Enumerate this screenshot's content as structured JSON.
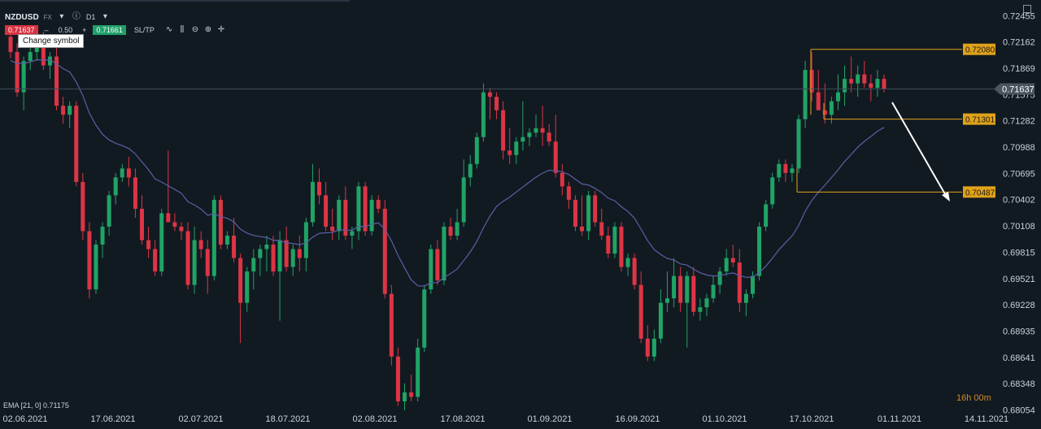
{
  "header": {
    "symbol": "NZDUSD",
    "market": "FX",
    "timeframe": "D1",
    "sell_price": "0.71637",
    "spread": "0.50",
    "buy_price": "0.71661",
    "sltp_label": "SL/TP",
    "tooltip": "Change symbol",
    "minus": "–",
    "plus": "+"
  },
  "indicator": {
    "label": "EMA [21, 0] 0.71175"
  },
  "timer": "16h 00m",
  "colors": {
    "bg": "#121a21",
    "up": "#21a366",
    "down": "#dc3545",
    "ema": "#5a5fa8",
    "level": "#e0a21a",
    "arrow": "#ffffff",
    "price_line": "#3a4a55"
  },
  "chart_data": {
    "type": "candlestick",
    "symbol": "NZDUSD",
    "timeframe": "D1",
    "ylim": [
      0.6805,
      0.7254
    ],
    "y_ticks": [
      "0.72455",
      "0.72162",
      "0.71869",
      "0.71575",
      "0.71282",
      "0.70988",
      "0.70695",
      "0.70402",
      "0.70108",
      "0.69815",
      "0.69521",
      "0.69228",
      "0.68935",
      "0.68641",
      "0.68348",
      "0.68054"
    ],
    "x_ticks": [
      "02.06.2021",
      "17.06.2021",
      "02.07.2021",
      "18.07.2021",
      "02.08.2021",
      "17.08.2021",
      "01.09.2021",
      "16.09.2021",
      "01.10.2021",
      "17.10.2021",
      "01.11.2021",
      "14.11.2021"
    ],
    "current_price": "0.71637",
    "levels": [
      {
        "label": "0.72080",
        "value": 0.7208
      },
      {
        "label": "0.71301",
        "value": 0.71301
      },
      {
        "label": "0.70487",
        "value": 0.70487
      }
    ],
    "candles": [
      [
        0.7222,
        0.7232,
        0.7198,
        0.7205
      ],
      [
        0.7205,
        0.7215,
        0.7155,
        0.716
      ],
      [
        0.716,
        0.72,
        0.714,
        0.7195
      ],
      [
        0.7195,
        0.721,
        0.7185,
        0.7205
      ],
      [
        0.7205,
        0.7232,
        0.7195,
        0.7225
      ],
      [
        0.7225,
        0.7228,
        0.7185,
        0.719
      ],
      [
        0.719,
        0.7205,
        0.7175,
        0.72
      ],
      [
        0.72,
        0.721,
        0.714,
        0.7145
      ],
      [
        0.7145,
        0.7155,
        0.7125,
        0.7135
      ],
      [
        0.7135,
        0.715,
        0.712,
        0.7145
      ],
      [
        0.7145,
        0.715,
        0.7055,
        0.706
      ],
      [
        0.706,
        0.707,
        0.6995,
        0.7005
      ],
      [
        0.7005,
        0.7015,
        0.693,
        0.694
      ],
      [
        0.694,
        0.6995,
        0.6935,
        0.699
      ],
      [
        0.699,
        0.7015,
        0.6975,
        0.701
      ],
      [
        0.701,
        0.705,
        0.7,
        0.7045
      ],
      [
        0.7045,
        0.707,
        0.7035,
        0.7065
      ],
      [
        0.7065,
        0.708,
        0.706,
        0.7075
      ],
      [
        0.7075,
        0.7088,
        0.7055,
        0.7065
      ],
      [
        0.7065,
        0.7075,
        0.702,
        0.703
      ],
      [
        0.703,
        0.7045,
        0.699,
        0.6995
      ],
      [
        0.6995,
        0.701,
        0.6975,
        0.6985
      ],
      [
        0.6985,
        0.6995,
        0.6955,
        0.696
      ],
      [
        0.696,
        0.703,
        0.6955,
        0.7025
      ],
      [
        0.7025,
        0.7095,
        0.7015,
        0.7015
      ],
      [
        0.7015,
        0.7025,
        0.7005,
        0.701
      ],
      [
        0.701,
        0.7015,
        0.6995,
        0.7005
      ],
      [
        0.7005,
        0.7015,
        0.694,
        0.6945
      ],
      [
        0.6945,
        0.701,
        0.6935,
        0.6995
      ],
      [
        0.6995,
        0.7005,
        0.6975,
        0.6985
      ],
      [
        0.6985,
        0.6995,
        0.6935,
        0.6955
      ],
      [
        0.6955,
        0.7045,
        0.695,
        0.704
      ],
      [
        0.704,
        0.7045,
        0.6985,
        0.699
      ],
      [
        0.699,
        0.7005,
        0.6985,
        0.7
      ],
      [
        0.7,
        0.702,
        0.697,
        0.6975
      ],
      [
        0.6975,
        0.698,
        0.688,
        0.6925
      ],
      [
        0.6925,
        0.6965,
        0.6915,
        0.696
      ],
      [
        0.696,
        0.6985,
        0.694,
        0.6975
      ],
      [
        0.6975,
        0.699,
        0.6955,
        0.6985
      ],
      [
        0.6985,
        0.7,
        0.696,
        0.699
      ],
      [
        0.699,
        0.7,
        0.6955,
        0.696
      ],
      [
        0.696,
        0.7005,
        0.6905,
        0.6995
      ],
      [
        0.6995,
        0.701,
        0.696,
        0.6965
      ],
      [
        0.6965,
        0.699,
        0.6955,
        0.6985
      ],
      [
        0.6985,
        0.7,
        0.696,
        0.6975
      ],
      [
        0.6975,
        0.702,
        0.696,
        0.7015
      ],
      [
        0.7015,
        0.708,
        0.701,
        0.706
      ],
      [
        0.706,
        0.7075,
        0.7035,
        0.7045
      ],
      [
        0.7045,
        0.706,
        0.7005,
        0.701
      ],
      [
        0.701,
        0.703,
        0.6995,
        0.7005
      ],
      [
        0.7005,
        0.7045,
        0.6995,
        0.704
      ],
      [
        0.704,
        0.7055,
        0.6995,
        0.7
      ],
      [
        0.7,
        0.701,
        0.6985,
        0.7005
      ],
      [
        0.7005,
        0.706,
        0.6995,
        0.7055
      ],
      [
        0.7055,
        0.706,
        0.7,
        0.7005
      ],
      [
        0.7005,
        0.7045,
        0.7,
        0.704
      ],
      [
        0.704,
        0.7045,
        0.7025,
        0.703
      ],
      [
        0.703,
        0.704,
        0.693,
        0.6935
      ],
      [
        0.6935,
        0.6945,
        0.6855,
        0.6865
      ],
      [
        0.6865,
        0.6875,
        0.681,
        0.6815
      ],
      [
        0.6815,
        0.6835,
        0.6805,
        0.6825
      ],
      [
        0.6825,
        0.6845,
        0.6815,
        0.682
      ],
      [
        0.682,
        0.6885,
        0.6815,
        0.6875
      ],
      [
        0.6875,
        0.6945,
        0.687,
        0.694
      ],
      [
        0.694,
        0.699,
        0.6935,
        0.6985
      ],
      [
        0.6985,
        0.6995,
        0.6945,
        0.695
      ],
      [
        0.695,
        0.7015,
        0.6945,
        0.701
      ],
      [
        0.701,
        0.702,
        0.6995,
        0.7
      ],
      [
        0.7,
        0.703,
        0.6995,
        0.7015
      ],
      [
        0.7015,
        0.7085,
        0.701,
        0.7065
      ],
      [
        0.7065,
        0.709,
        0.7055,
        0.708
      ],
      [
        0.708,
        0.7115,
        0.7075,
        0.711
      ],
      [
        0.711,
        0.717,
        0.7105,
        0.716
      ],
      [
        0.716,
        0.7165,
        0.713,
        0.7155
      ],
      [
        0.7155,
        0.716,
        0.713,
        0.714
      ],
      [
        0.714,
        0.715,
        0.7085,
        0.7095
      ],
      [
        0.7095,
        0.712,
        0.708,
        0.709
      ],
      [
        0.709,
        0.711,
        0.708,
        0.7105
      ],
      [
        0.7105,
        0.715,
        0.7095,
        0.711
      ],
      [
        0.711,
        0.712,
        0.71,
        0.7115
      ],
      [
        0.7115,
        0.7135,
        0.711,
        0.712
      ],
      [
        0.712,
        0.7145,
        0.71,
        0.7115
      ],
      [
        0.7115,
        0.7125,
        0.71,
        0.7105
      ],
      [
        0.7105,
        0.7135,
        0.7065,
        0.707
      ],
      [
        0.707,
        0.708,
        0.7045,
        0.7055
      ],
      [
        0.7055,
        0.706,
        0.703,
        0.704
      ],
      [
        0.704,
        0.7045,
        0.7005,
        0.701
      ],
      [
        0.701,
        0.7045,
        0.7,
        0.7005
      ],
      [
        0.7005,
        0.705,
        0.6995,
        0.7045
      ],
      [
        0.7045,
        0.705,
        0.701,
        0.7015
      ],
      [
        0.7015,
        0.703,
        0.6995,
        0.7
      ],
      [
        0.7,
        0.701,
        0.6975,
        0.698
      ],
      [
        0.698,
        0.7015,
        0.6975,
        0.701
      ],
      [
        0.701,
        0.7015,
        0.696,
        0.6965
      ],
      [
        0.6965,
        0.698,
        0.6955,
        0.6975
      ],
      [
        0.6975,
        0.698,
        0.694,
        0.6945
      ],
      [
        0.6945,
        0.696,
        0.688,
        0.6885
      ],
      [
        0.6885,
        0.69,
        0.686,
        0.6865
      ],
      [
        0.6865,
        0.6895,
        0.686,
        0.6885
      ],
      [
        0.6885,
        0.694,
        0.688,
        0.6925
      ],
      [
        0.6925,
        0.696,
        0.6915,
        0.693
      ],
      [
        0.693,
        0.6975,
        0.692,
        0.6955
      ],
      [
        0.6955,
        0.6965,
        0.6915,
        0.6925
      ],
      [
        0.6925,
        0.696,
        0.6875,
        0.6955
      ],
      [
        0.6955,
        0.6965,
        0.691,
        0.6915
      ],
      [
        0.6915,
        0.693,
        0.6905,
        0.692
      ],
      [
        0.692,
        0.6935,
        0.691,
        0.693
      ],
      [
        0.693,
        0.6955,
        0.6925,
        0.6945
      ],
      [
        0.6945,
        0.6965,
        0.6935,
        0.696
      ],
      [
        0.696,
        0.6985,
        0.6955,
        0.6975
      ],
      [
        0.6975,
        0.699,
        0.6965,
        0.697
      ],
      [
        0.697,
        0.6985,
        0.6915,
        0.6925
      ],
      [
        0.6925,
        0.694,
        0.691,
        0.6935
      ],
      [
        0.6935,
        0.696,
        0.693,
        0.6955
      ],
      [
        0.6955,
        0.7015,
        0.695,
        0.701
      ],
      [
        0.701,
        0.704,
        0.7005,
        0.7035
      ],
      [
        0.7035,
        0.707,
        0.703,
        0.7065
      ],
      [
        0.7065,
        0.7085,
        0.706,
        0.708
      ],
      [
        0.708,
        0.7085,
        0.706,
        0.707
      ],
      [
        0.707,
        0.708,
        0.706,
        0.7075
      ],
      [
        0.7075,
        0.7135,
        0.707,
        0.713
      ],
      [
        0.713,
        0.7195,
        0.712,
        0.7185
      ],
      [
        0.7185,
        0.7205,
        0.715,
        0.716
      ],
      [
        0.716,
        0.7185,
        0.714,
        0.714
      ],
      [
        0.714,
        0.717,
        0.7125,
        0.7135
      ],
      [
        0.7135,
        0.7155,
        0.7125,
        0.715
      ],
      [
        0.715,
        0.718,
        0.714,
        0.716
      ],
      [
        0.716,
        0.719,
        0.7145,
        0.7175
      ],
      [
        0.7175,
        0.72,
        0.716,
        0.717
      ],
      [
        0.717,
        0.719,
        0.7155,
        0.718
      ],
      [
        0.718,
        0.7195,
        0.7165,
        0.717
      ],
      [
        0.717,
        0.718,
        0.715,
        0.7165
      ],
      [
        0.7165,
        0.7185,
        0.7155,
        0.7175
      ],
      [
        0.7175,
        0.718,
        0.716,
        0.7164
      ]
    ],
    "ema": {
      "label": "EMA [21, 0] 0.71175",
      "period": 21,
      "last_value": 0.71175
    }
  }
}
